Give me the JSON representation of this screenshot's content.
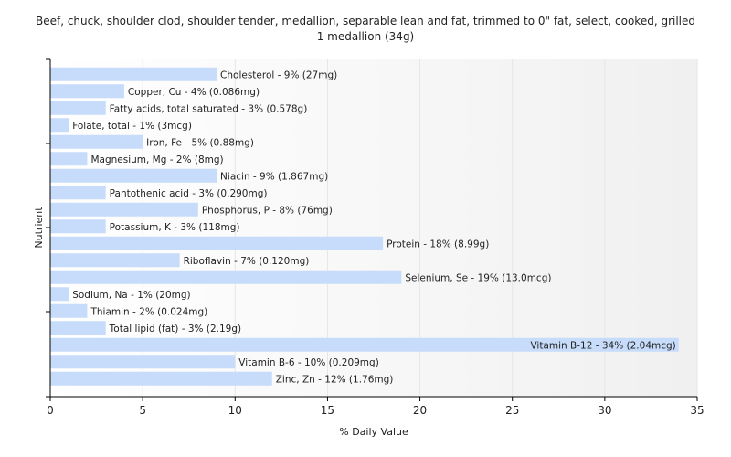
{
  "chart_data": {
    "type": "bar",
    "orientation": "horizontal",
    "title_line1": "Beef, chuck, shoulder clod, shoulder tender, medallion, separable lean and fat, trimmed to 0\" fat, select, cooked, grilled",
    "title_line2": "1 medallion (34g)",
    "xlabel": "% Daily Value",
    "ylabel": "Nutrient",
    "xlim": [
      0,
      35
    ],
    "xticks": [
      0,
      5,
      10,
      15,
      20,
      25,
      30,
      35
    ],
    "grid": true,
    "bar_color": "#c6dcfa",
    "categories": [
      "Cholesterol",
      "Copper, Cu",
      "Fatty acids, total saturated",
      "Folate, total",
      "Iron, Fe",
      "Magnesium, Mg",
      "Niacin",
      "Pantothenic acid",
      "Phosphorus, P",
      "Potassium, K",
      "Protein",
      "Riboflavin",
      "Selenium, Se",
      "Sodium, Na",
      "Thiamin",
      "Total lipid (fat)",
      "Vitamin B-12",
      "Vitamin B-6",
      "Zinc, Zn"
    ],
    "values": [
      9,
      4,
      3,
      1,
      5,
      2,
      9,
      3,
      8,
      3,
      18,
      7,
      19,
      1,
      2,
      3,
      34,
      10,
      12
    ],
    "labels": [
      "Cholesterol - 9% (27mg)",
      "Copper, Cu - 4% (0.086mg)",
      "Fatty acids, total saturated - 3% (0.578g)",
      "Folate, total - 1% (3mcg)",
      "Iron, Fe - 5% (0.88mg)",
      "Magnesium, Mg - 2% (8mg)",
      "Niacin - 9% (1.867mg)",
      "Pantothenic acid - 3% (0.290mg)",
      "Phosphorus, P - 8% (76mg)",
      "Potassium, K - 3% (118mg)",
      "Protein - 18% (8.99g)",
      "Riboflavin - 7% (0.120mg)",
      "Selenium, Se - 19% (13.0mcg)",
      "Sodium, Na - 1% (20mg)",
      "Thiamin - 2% (0.024mg)",
      "Total lipid (fat) - 3% (2.19g)",
      "Vitamin B-12 - 34% (2.04mcg)",
      "Vitamin B-6 - 10% (0.209mg)",
      "Zinc, Zn - 12% (1.76mg)"
    ]
  }
}
